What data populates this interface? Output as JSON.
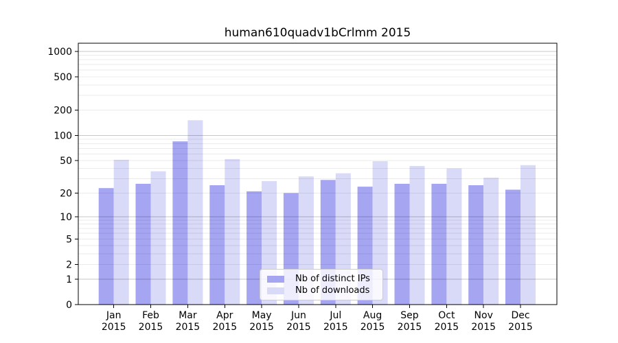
{
  "chart_data": {
    "type": "bar",
    "title": "human610quadv1bCrlmm 2015",
    "categories": [
      "Jan",
      "Feb",
      "Mar",
      "Apr",
      "May",
      "Jun",
      "Jul",
      "Aug",
      "Sep",
      "Oct",
      "Nov",
      "Dec"
    ],
    "x_year": "2015",
    "series": [
      {
        "id": "distinct-ips",
        "name": "Nb of distinct IPs",
        "color": "#a5a5f2",
        "values": [
          23,
          26,
          85,
          25,
          21,
          20,
          29,
          24,
          26,
          26,
          25,
          22
        ]
      },
      {
        "id": "downloads",
        "name": "Nb of downloads",
        "color": "#d9d9f8",
        "values": [
          51,
          37,
          152,
          52,
          28,
          32,
          35,
          49,
          43,
          40,
          31,
          44
        ]
      }
    ],
    "yscale": "log1p",
    "ylim": [
      0,
      1000
    ],
    "yticks": [
      0,
      1,
      2,
      5,
      10,
      20,
      50,
      100,
      200,
      500,
      1000
    ],
    "grid": {
      "major": [
        1,
        10,
        100,
        1000
      ],
      "minor_decades": [
        1,
        10,
        100
      ],
      "minor_steps": [
        2,
        3,
        4,
        5,
        6,
        7,
        8,
        9
      ]
    },
    "legend": {
      "position": "lower center",
      "entries": [
        "Nb of distinct IPs",
        "Nb of downloads"
      ]
    }
  }
}
